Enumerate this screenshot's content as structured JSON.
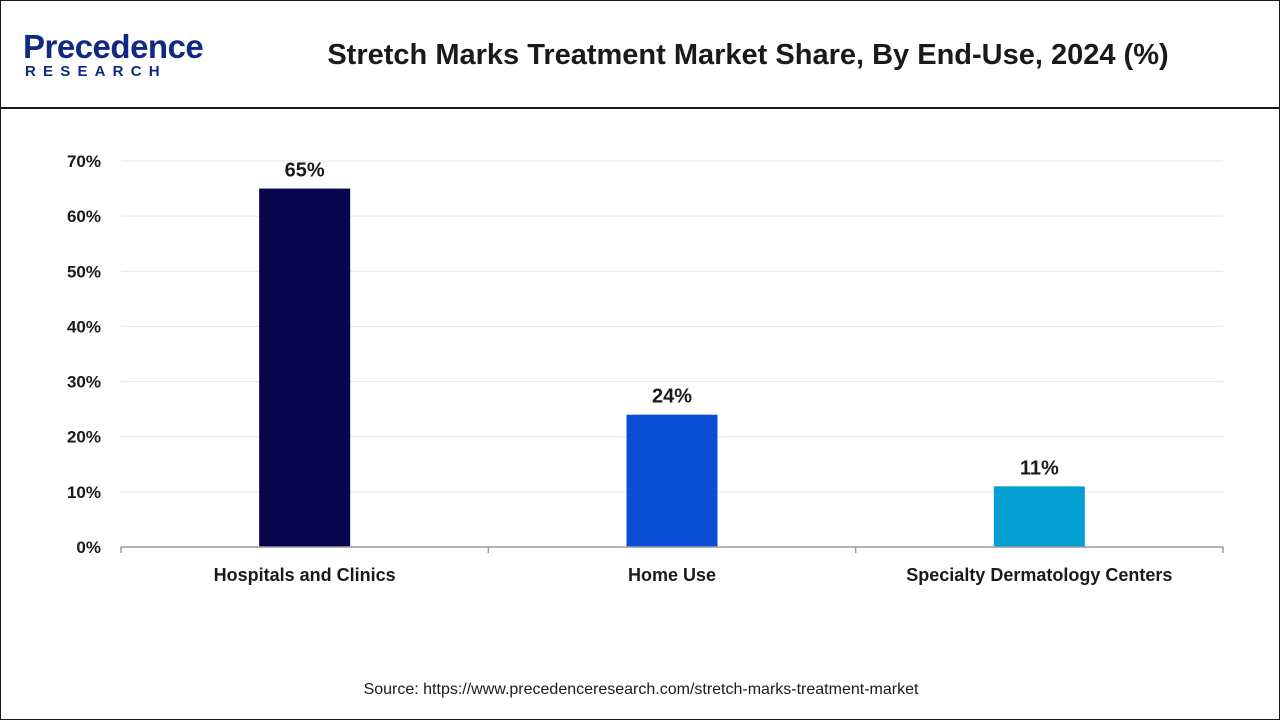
{
  "header": {
    "logo_word": "Precedence",
    "logo_sub": "RESEARCH",
    "title": "Stretch Marks Treatment Market Share, By End-Use, 2024 (%)"
  },
  "footer": {
    "source": "Source: https://www.precedenceresearch.com/stretch-marks-treatment-market"
  },
  "chart_data": {
    "type": "bar",
    "title": "Stretch Marks Treatment Market Share, By End-Use, 2024 (%)",
    "xlabel": "",
    "ylabel": "",
    "categories": [
      "Hospitals and Clinics",
      "Home Use",
      "Specialty Dermatology Centers"
    ],
    "values": [
      65,
      24,
      11
    ],
    "data_labels": [
      "65%",
      "24%",
      "11%"
    ],
    "colors": [
      "#06064f",
      "#0a4fd6",
      "#039fd2"
    ],
    "ylim": [
      0,
      70
    ],
    "yticks": [
      0,
      10,
      20,
      30,
      40,
      50,
      60,
      70
    ],
    "ytick_labels": [
      "0%",
      "10%",
      "20%",
      "30%",
      "40%",
      "50%",
      "60%",
      "70%"
    ],
    "grid": true,
    "legend": "none"
  }
}
